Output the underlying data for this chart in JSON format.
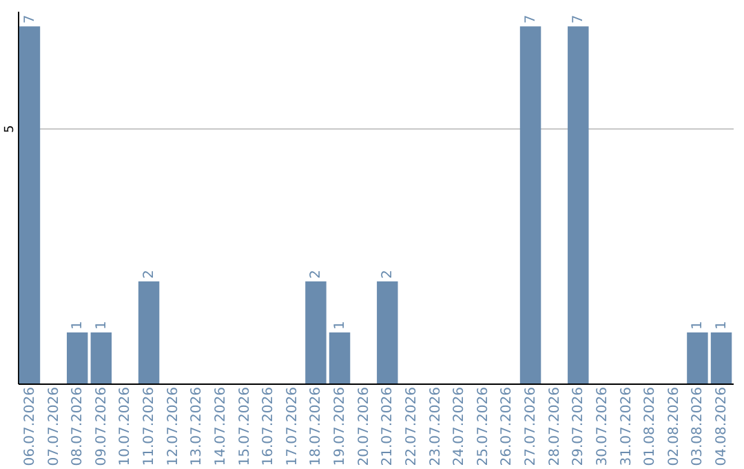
{
  "chart_data": {
    "type": "bar",
    "categories": [
      "06.07.2026",
      "07.07.2026",
      "08.07.2026",
      "09.07.2026",
      "10.07.2026",
      "11.07.2026",
      "12.07.2026",
      "13.07.2026",
      "14.07.2026",
      "15.07.2026",
      "16.07.2026",
      "17.07.2026",
      "18.07.2026",
      "19.07.2026",
      "20.07.2026",
      "21.07.2026",
      "22.07.2026",
      "23.07.2026",
      "24.07.2026",
      "25.07.2026",
      "26.07.2026",
      "27.07.2026",
      "28.07.2026",
      "29.07.2026",
      "30.07.2026",
      "31.07.2026",
      "01.08.2026",
      "02.08.2026",
      "03.08.2026",
      "04.08.2026"
    ],
    "values": [
      7,
      0,
      1,
      1,
      0,
      2,
      0,
      0,
      0,
      0,
      0,
      0,
      2,
      1,
      0,
      2,
      0,
      0,
      0,
      0,
      0,
      7,
      0,
      7,
      0,
      0,
      0,
      0,
      1,
      1
    ],
    "value_labels": [
      "7",
      null,
      "1",
      "1",
      null,
      "2",
      null,
      null,
      null,
      null,
      null,
      null,
      "2",
      "1",
      null,
      "2",
      null,
      null,
      null,
      null,
      null,
      "7",
      null,
      "7",
      null,
      null,
      null,
      null,
      "1",
      "1"
    ],
    "color": "#6a8caf",
    "ylim": [
      0,
      7.3
    ],
    "yticks": [
      5
    ],
    "grid": "y"
  }
}
